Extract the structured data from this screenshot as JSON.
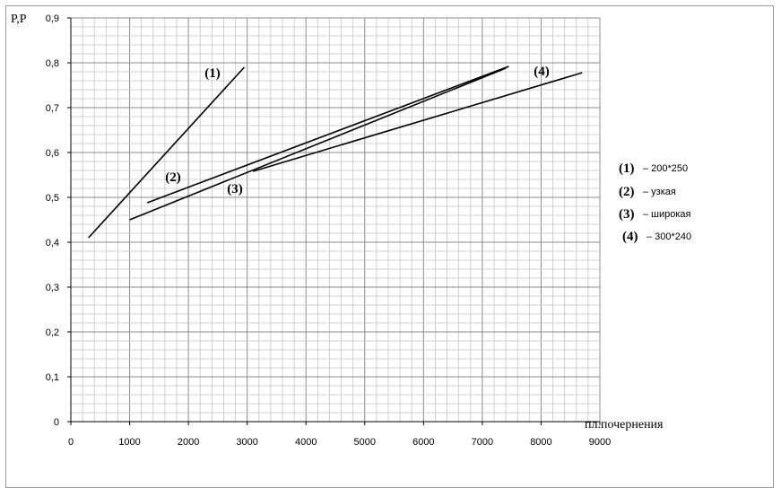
{
  "chart_data": {
    "type": "line",
    "title": "",
    "xlabel": "пл.почернения",
    "ylabel": "P,P",
    "xlim": [
      0,
      9000
    ],
    "ylim": [
      0,
      0.9
    ],
    "x_ticks": [
      "0",
      "1000",
      "2000",
      "3000",
      "4000",
      "5000",
      "6000",
      "7000",
      "8000",
      "9000"
    ],
    "y_ticks": [
      "0",
      "0,1",
      "0,2",
      "0,3",
      "0,4",
      "0,5",
      "0,6",
      "0,7",
      "0,8",
      "0,9"
    ],
    "grid": true,
    "legend_position": "right",
    "series": [
      {
        "name": "200*250",
        "label": "(1)",
        "x": [
          300,
          2950
        ],
        "y": [
          0.41,
          0.79
        ]
      },
      {
        "name": "узкая",
        "label": "(2)",
        "x": [
          1300,
          7450
        ],
        "y": [
          0.488,
          0.792
        ]
      },
      {
        "name": "широкая",
        "label": "(3)",
        "x": [
          1000,
          7400
        ],
        "y": [
          0.45,
          0.788
        ]
      },
      {
        "name": "300*240",
        "label": "(4)",
        "x": [
          3100,
          8700
        ],
        "y": [
          0.558,
          0.778
        ]
      }
    ],
    "legend": [
      {
        "key": "(1)",
        "text": "– 200*250"
      },
      {
        "key": "(2)",
        "text": "– узкая"
      },
      {
        "key": "(3)",
        "text": "– широкая"
      },
      {
        "key": "(4)",
        "text": "– 300*240"
      }
    ]
  }
}
